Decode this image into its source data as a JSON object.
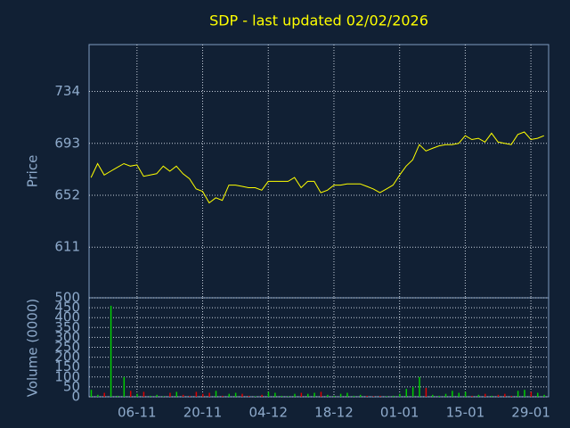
{
  "chart_data": [
    {
      "type": "line",
      "title": "SDP - last updated 02/02/2026",
      "ylabel": "Price",
      "color": "#ffff00",
      "ylim": [
        571,
        771
      ],
      "yticks": [
        611,
        652,
        693,
        734
      ],
      "grid": true,
      "values": [
        666,
        677,
        668,
        671,
        674,
        677,
        675,
        676,
        667,
        668,
        669,
        675,
        671,
        675,
        669,
        665,
        657,
        655,
        646,
        650,
        648,
        660,
        660,
        659,
        658,
        658,
        656,
        663,
        663,
        663,
        663,
        666,
        658,
        663,
        663,
        654,
        656,
        660,
        660,
        661,
        661,
        661,
        659,
        657,
        654,
        657,
        660,
        668,
        675,
        680,
        692,
        687,
        689,
        691,
        692,
        692,
        693,
        699,
        696,
        697,
        694,
        701,
        694,
        693,
        692,
        700,
        702,
        696,
        697,
        699
      ]
    },
    {
      "type": "bar",
      "ylabel": "Volume (0000)",
      "up_color": "#00cc00",
      "down_color": "#dd0000",
      "ylim": [
        0,
        500
      ],
      "yticks": [
        0,
        50,
        100,
        150,
        200,
        250,
        300,
        350,
        400,
        450,
        500
      ],
      "grid": true,
      "categories": [
        null,
        null,
        null,
        null,
        null,
        null,
        null,
        "06-11",
        null,
        null,
        null,
        null,
        null,
        null,
        null,
        null,
        null,
        "20-11",
        null,
        null,
        null,
        null,
        null,
        null,
        null,
        null,
        null,
        "04-12",
        null,
        null,
        null,
        null,
        null,
        null,
        null,
        null,
        null,
        "18-12",
        null,
        null,
        null,
        null,
        null,
        null,
        null,
        null,
        null,
        "01-01",
        null,
        null,
        null,
        null,
        null,
        null,
        null,
        null,
        null,
        "15-01",
        null,
        null,
        null,
        null,
        null,
        null,
        null,
        null,
        null,
        "29-01",
        null,
        null
      ],
      "values": [
        35,
        10,
        20,
        460,
        5,
        100,
        30,
        15,
        25,
        5,
        10,
        3,
        20,
        25,
        10,
        5,
        25,
        15,
        20,
        30,
        5,
        15,
        20,
        15,
        5,
        3,
        10,
        25,
        20,
        5,
        3,
        15,
        20,
        15,
        20,
        25,
        10,
        5,
        15,
        20,
        5,
        10,
        5,
        3,
        5,
        3,
        5,
        15,
        40,
        50,
        100,
        45,
        10,
        5,
        15,
        30,
        20,
        25,
        5,
        10,
        15,
        5,
        10,
        15,
        5,
        30,
        35,
        25,
        20,
        10
      ]
    }
  ]
}
